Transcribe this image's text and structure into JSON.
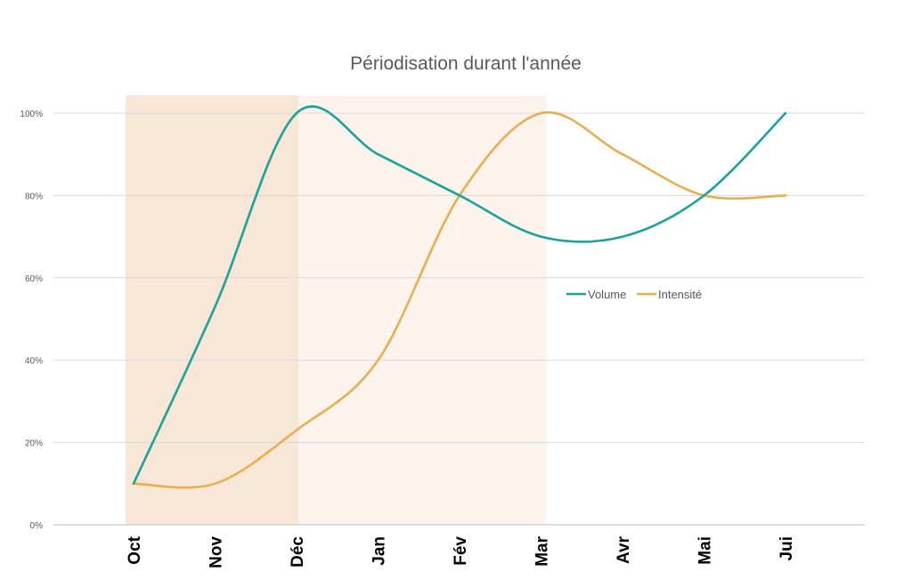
{
  "chart_data": {
    "type": "line",
    "title": "Périodisation durant l'année",
    "categories": [
      "Oct",
      "Nov",
      "Déc",
      "Jan",
      "Fév",
      "Mar",
      "Avr",
      "Mai",
      "Jui"
    ],
    "y_ticks": [
      "0%",
      "20%",
      "40%",
      "60%",
      "80%",
      "100%"
    ],
    "ylim": [
      0,
      100
    ],
    "series": [
      {
        "name": "Volume",
        "color": "#1aa39a",
        "values": [
          10,
          53,
          100,
          90,
          80,
          70,
          70,
          80,
          100
        ]
      },
      {
        "name": "Intensité",
        "color": "#e8ae4f",
        "values": [
          10,
          10,
          23,
          40,
          80,
          100,
          90,
          80,
          80
        ]
      }
    ],
    "shaded_periods": [
      {
        "from": "Oct",
        "to": "Déc",
        "color": "#f8e6d6"
      },
      {
        "from": "Déc",
        "to": "Mar",
        "color": "#fcf3ec"
      }
    ],
    "grid": true,
    "legend_position": "right"
  }
}
